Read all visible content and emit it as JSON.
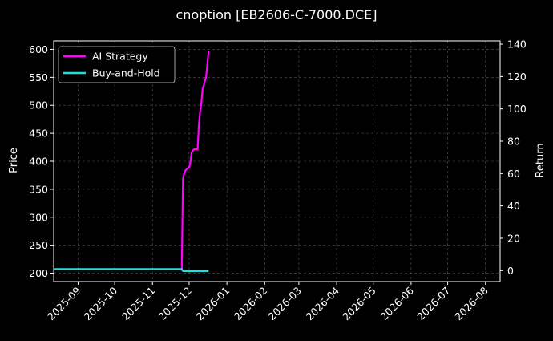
{
  "chart_data": {
    "type": "line",
    "title": "cnoption [EB2606-C-7000.DCE]",
    "xlabel": "",
    "ylabel": "Price",
    "y2label": "Return",
    "x_ticks": [
      "2025-09",
      "2025-10",
      "2025-11",
      "2025-12",
      "2026-01",
      "2026-02",
      "2026-03",
      "2026-04",
      "2026-05",
      "2026-06",
      "2026-07",
      "2026-08"
    ],
    "xlim": [
      "2025-08-12",
      "2026-08-13"
    ],
    "ylim": [
      185,
      615
    ],
    "y_ticks": [
      200,
      250,
      300,
      350,
      400,
      450,
      500,
      550,
      600
    ],
    "y2lim": [
      -6.8,
      142
    ],
    "y2_ticks": [
      0,
      20,
      40,
      60,
      80,
      100,
      120,
      140
    ],
    "grid": true,
    "legend_position": "top-left",
    "background": "#000000",
    "series": [
      {
        "name": "AI Strategy",
        "axis": "right",
        "color": "#ff00ff",
        "x": [
          "2025-11-25",
          "2025-11-26",
          "2025-11-27",
          "2025-11-28",
          "2025-12-01",
          "2025-12-02",
          "2025-12-03",
          "2025-12-04",
          "2025-12-05",
          "2025-12-08",
          "2025-12-09",
          "2025-12-10",
          "2025-12-11",
          "2025-12-12",
          "2025-12-15",
          "2025-12-16",
          "2025-12-17"
        ],
        "y": [
          0,
          57,
          60,
          62,
          64,
          66,
          73,
          74,
          75,
          75,
          90,
          98,
          103,
          112,
          120,
          128,
          136
        ]
      },
      {
        "name": "Buy-and-Hold",
        "axis": "right",
        "color": "#22dddd",
        "x": [
          "2025-08-12",
          "2025-09-01",
          "2025-10-01",
          "2025-11-01",
          "2025-11-25",
          "2025-11-26",
          "2025-12-05",
          "2025-12-17"
        ],
        "y": [
          1,
          1,
          1,
          1,
          1,
          -0.3,
          -0.3,
          -0.3
        ]
      }
    ]
  }
}
